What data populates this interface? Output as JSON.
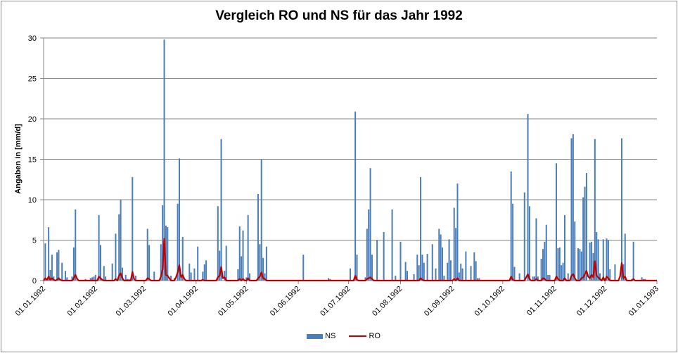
{
  "chart_data": {
    "type": "bar+line",
    "title": "Vergleich RO und NS für das Jahr 1992",
    "xlabel": "",
    "ylabel": "Angaben in [mm/d]",
    "ylim": [
      0,
      30
    ],
    "yticks": [
      "0",
      "5",
      "10",
      "15",
      "20",
      "25",
      "30"
    ],
    "x_unit": "day of year 1992 (0 = 01.01.1992)",
    "xlim": [
      0,
      366
    ],
    "xticks": [
      {
        "day": 0,
        "label": "01.01.1992"
      },
      {
        "day": 31,
        "label": "01.02.1992"
      },
      {
        "day": 60,
        "label": "01.03.1992"
      },
      {
        "day": 91,
        "label": "01.04.1992"
      },
      {
        "day": 121,
        "label": "01.05.1992"
      },
      {
        "day": 152,
        "label": "01.06.1992"
      },
      {
        "day": 182,
        "label": "01.07.1992"
      },
      {
        "day": 213,
        "label": "01.08.1992"
      },
      {
        "day": 244,
        "label": "01.09.1992"
      },
      {
        "day": 274,
        "label": "01.10.1992"
      },
      {
        "day": 305,
        "label": "01.11.1992"
      },
      {
        "day": 335,
        "label": "01.12.1992"
      },
      {
        "day": 366,
        "label": "01.01.1993"
      }
    ],
    "grid": true,
    "legend_position": "bottom",
    "series": [
      {
        "name": "NS",
        "type": "bar",
        "color": "#4a7ebb",
        "points": [
          [
            1,
            4.6
          ],
          [
            3,
            6.6
          ],
          [
            4,
            1.3
          ],
          [
            5,
            3.2
          ],
          [
            6,
            0.5
          ],
          [
            8,
            3.5
          ],
          [
            9,
            3.8
          ],
          [
            11,
            2.2
          ],
          [
            13,
            1.2
          ],
          [
            14,
            0.4
          ],
          [
            17,
            0.5
          ],
          [
            18,
            4.1
          ],
          [
            19,
            8.8
          ],
          [
            25,
            0.2
          ],
          [
            28,
            0.3
          ],
          [
            29,
            0.4
          ],
          [
            30,
            0.5
          ],
          [
            31,
            0.7
          ],
          [
            33,
            8.1
          ],
          [
            34,
            4.4
          ],
          [
            36,
            1.8
          ],
          [
            37,
            0.5
          ],
          [
            41,
            2.1
          ],
          [
            43,
            5.8
          ],
          [
            45,
            8.2
          ],
          [
            46,
            10.0
          ],
          [
            47,
            1.6
          ],
          [
            49,
            0.7
          ],
          [
            50,
            0.2
          ],
          [
            51,
            0.2
          ],
          [
            53,
            12.8
          ],
          [
            55,
            0.6
          ],
          [
            62,
            6.4
          ],
          [
            63,
            4.4
          ],
          [
            66,
            1.1
          ],
          [
            70,
            4.5
          ],
          [
            71,
            9.3
          ],
          [
            72,
            29.8
          ],
          [
            73,
            6.8
          ],
          [
            74,
            6.6
          ],
          [
            76,
            0.6
          ],
          [
            78,
            0.3
          ],
          [
            80,
            9.5
          ],
          [
            81,
            15.1
          ],
          [
            82,
            0.7
          ],
          [
            83,
            5.4
          ],
          [
            87,
            2.1
          ],
          [
            88,
            1.0
          ],
          [
            90,
            1.5
          ],
          [
            92,
            4.2
          ],
          [
            95,
            1.1
          ],
          [
            96,
            2.0
          ],
          [
            97,
            2.5
          ],
          [
            104,
            9.2
          ],
          [
            105,
            3.7
          ],
          [
            106,
            17.5
          ],
          [
            108,
            1.2
          ],
          [
            109,
            4.3
          ],
          [
            116,
            1.4
          ],
          [
            117,
            6.7
          ],
          [
            118,
            3.0
          ],
          [
            119,
            6.2
          ],
          [
            121,
            0.4
          ],
          [
            122,
            8.1
          ],
          [
            123,
            0.9
          ],
          [
            128,
            10.7
          ],
          [
            129,
            4.5
          ],
          [
            130,
            15.0
          ],
          [
            131,
            2.8
          ],
          [
            132,
            0.9
          ],
          [
            133,
            4.2
          ],
          [
            155,
            3.2
          ],
          [
            170,
            0.3
          ],
          [
            171,
            0.2
          ],
          [
            183,
            1.5
          ],
          [
            186,
            20.9
          ],
          [
            187,
            3.2
          ],
          [
            192,
            0.4
          ],
          [
            193,
            6.4
          ],
          [
            194,
            8.8
          ],
          [
            195,
            13.9
          ],
          [
            196,
            3.2
          ],
          [
            199,
            5.0
          ],
          [
            203,
            6.0
          ],
          [
            208,
            8.8
          ],
          [
            210,
            0.6
          ],
          [
            213,
            4.8
          ],
          [
            216,
            2.3
          ],
          [
            217,
            1.2
          ],
          [
            221,
            0.8
          ],
          [
            223,
            3.2
          ],
          [
            224,
            1.9
          ],
          [
            225,
            12.8
          ],
          [
            226,
            3.2
          ],
          [
            227,
            2.2
          ],
          [
            229,
            3.3
          ],
          [
            232,
            4.5
          ],
          [
            234,
            1.5
          ],
          [
            236,
            6.4
          ],
          [
            237,
            5.7
          ],
          [
            238,
            4.1
          ],
          [
            239,
            0.6
          ],
          [
            241,
            2.2
          ],
          [
            242,
            5.1
          ],
          [
            243,
            2.5
          ],
          [
            245,
            9.0
          ],
          [
            246,
            6.5
          ],
          [
            247,
            12.0
          ],
          [
            248,
            1.0
          ],
          [
            249,
            2.1
          ],
          [
            250,
            1.5
          ],
          [
            252,
            3.6
          ],
          [
            255,
            1.8
          ],
          [
            257,
            3.5
          ],
          [
            258,
            2.4
          ],
          [
            259,
            0.3
          ],
          [
            260,
            0.3
          ],
          [
            279,
            13.5
          ],
          [
            280,
            9.5
          ],
          [
            281,
            1.7
          ],
          [
            284,
            0.9
          ],
          [
            287,
            10.9
          ],
          [
            289,
            20.6
          ],
          [
            290,
            9.2
          ],
          [
            292,
            0.5
          ],
          [
            293,
            0.5
          ],
          [
            294,
            7.7
          ],
          [
            295,
            0.5
          ],
          [
            297,
            2.7
          ],
          [
            298,
            3.9
          ],
          [
            299,
            4.8
          ],
          [
            300,
            6.9
          ],
          [
            301,
            0.7
          ],
          [
            302,
            0.7
          ],
          [
            306,
            14.5
          ],
          [
            307,
            4.0
          ],
          [
            308,
            4.1
          ],
          [
            309,
            1.9
          ],
          [
            310,
            2.2
          ],
          [
            311,
            8.1
          ],
          [
            313,
            0.9
          ],
          [
            315,
            17.6
          ],
          [
            316,
            18.1
          ],
          [
            317,
            7.3
          ],
          [
            319,
            4.0
          ],
          [
            320,
            3.9
          ],
          [
            321,
            3.6
          ],
          [
            322,
            10.3
          ],
          [
            323,
            11.6
          ],
          [
            324,
            13.3
          ],
          [
            326,
            4.7
          ],
          [
            327,
            4.8
          ],
          [
            328,
            3.4
          ],
          [
            329,
            17.5
          ],
          [
            330,
            6.0
          ],
          [
            331,
            5.1
          ],
          [
            332,
            0.9
          ],
          [
            334,
            5.1
          ],
          [
            336,
            5.2
          ],
          [
            337,
            5.0
          ],
          [
            338,
            1.4
          ],
          [
            341,
            2.0
          ],
          [
            345,
            17.6
          ],
          [
            346,
            2.0
          ],
          [
            347,
            5.8
          ],
          [
            351,
            0.2
          ],
          [
            352,
            4.8
          ],
          [
            357,
            0.4
          ],
          [
            358,
            0.2
          ],
          [
            359,
            0.2
          ]
        ]
      },
      {
        "name": "RO",
        "type": "line",
        "color": "#c00000",
        "points": [
          [
            1,
            0.3
          ],
          [
            2,
            0.1
          ],
          [
            3,
            0.5
          ],
          [
            4,
            0.1
          ],
          [
            5,
            0.3
          ],
          [
            6,
            0.1
          ],
          [
            8,
            0.1
          ],
          [
            9,
            0.3
          ],
          [
            10,
            0.1
          ],
          [
            18,
            0.3
          ],
          [
            19,
            0.7
          ],
          [
            20,
            0.2
          ],
          [
            33,
            0.5
          ],
          [
            34,
            0.3
          ],
          [
            35,
            0.1
          ],
          [
            43,
            0.2
          ],
          [
            45,
            0.6
          ],
          [
            46,
            0.9
          ],
          [
            47,
            0.3
          ],
          [
            53,
            1.1
          ],
          [
            54,
            0.2
          ],
          [
            62,
            0.3
          ],
          [
            63,
            0.2
          ],
          [
            70,
            0.5
          ],
          [
            71,
            1.4
          ],
          [
            72,
            5.2
          ],
          [
            73,
            0.7
          ],
          [
            74,
            0.6
          ],
          [
            75,
            0.3
          ],
          [
            79,
            0.4
          ],
          [
            80,
            1.0
          ],
          [
            81,
            1.9
          ],
          [
            82,
            0.4
          ],
          [
            83,
            0.7
          ],
          [
            84,
            0.2
          ],
          [
            95,
            0.1
          ],
          [
            104,
            0.4
          ],
          [
            105,
            0.6
          ],
          [
            106,
            1.7
          ],
          [
            107,
            0.3
          ],
          [
            108,
            0.4
          ],
          [
            117,
            0.2
          ],
          [
            119,
            0.2
          ],
          [
            122,
            0.3
          ],
          [
            128,
            0.3
          ],
          [
            129,
            0.5
          ],
          [
            130,
            1.0
          ],
          [
            131,
            0.3
          ],
          [
            132,
            0.2
          ],
          [
            186,
            0.6
          ],
          [
            187,
            0.1
          ],
          [
            193,
            0.2
          ],
          [
            194,
            0.3
          ],
          [
            195,
            0.4
          ],
          [
            196,
            0.2
          ],
          [
            225,
            0.3
          ],
          [
            226,
            0.1
          ],
          [
            245,
            0.2
          ],
          [
            247,
            0.3
          ],
          [
            279,
            0.5
          ],
          [
            280,
            0.1
          ],
          [
            288,
            0.4
          ],
          [
            289,
            0.8
          ],
          [
            290,
            0.2
          ],
          [
            294,
            0.2
          ],
          [
            298,
            0.3
          ],
          [
            299,
            0.2
          ],
          [
            306,
            0.5
          ],
          [
            307,
            0.2
          ],
          [
            311,
            0.3
          ],
          [
            315,
            0.6
          ],
          [
            316,
            0.8
          ],
          [
            317,
            0.3
          ],
          [
            321,
            0.3
          ],
          [
            322,
            0.4
          ],
          [
            323,
            0.8
          ],
          [
            324,
            1.2
          ],
          [
            325,
            0.5
          ],
          [
            326,
            0.3
          ],
          [
            327,
            0.7
          ],
          [
            328,
            0.4
          ],
          [
            329,
            2.4
          ],
          [
            330,
            0.6
          ],
          [
            331,
            0.4
          ],
          [
            332,
            0.2
          ],
          [
            334,
            0.4
          ],
          [
            336,
            0.5
          ],
          [
            337,
            0.3
          ],
          [
            344,
            0.5
          ],
          [
            345,
            2.2
          ],
          [
            346,
            0.3
          ],
          [
            347,
            0.5
          ],
          [
            352,
            0.2
          ]
        ]
      }
    ]
  }
}
